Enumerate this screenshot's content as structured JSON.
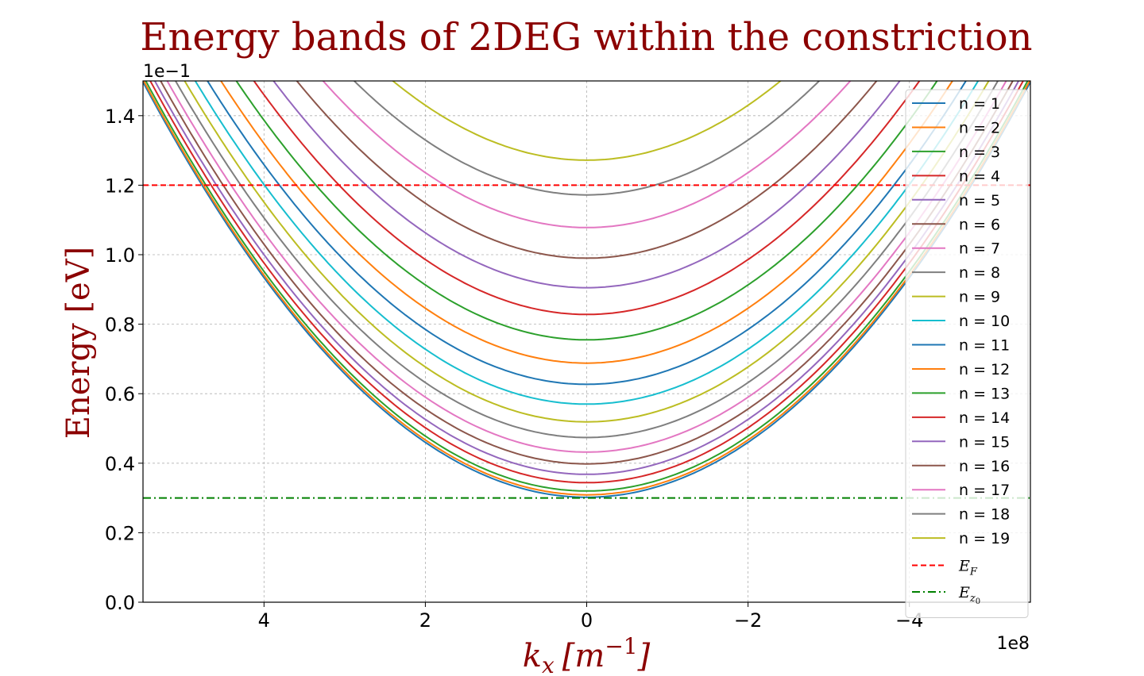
{
  "chart_data": {
    "type": "line",
    "title": "Energy bands of 2DEG within the constriction",
    "xlabel_base": "k",
    "xlabel_sub": "x",
    "xlabel_unit": "[m",
    "xlabel_unit_exp": "−1",
    "xlabel_unit_close": "]",
    "ylabel": "Energy [eV]",
    "x_multiplier": "1e8",
    "y_multiplier": "1e−1",
    "xlim": [
      5.5,
      -5.5
    ],
    "ylim": [
      0.0,
      1.5
    ],
    "x_inverted": true,
    "x_ticks": [
      4,
      2,
      0,
      -2,
      -4
    ],
    "x_tick_labels": [
      "4",
      "2",
      "0",
      "−2",
      "−4"
    ],
    "y_ticks": [
      0.0,
      0.2,
      0.4,
      0.6,
      0.8,
      1.0,
      1.2,
      1.4
    ],
    "y_tick_labels": [
      "0.0",
      "0.2",
      "0.4",
      "0.6",
      "0.8",
      "1.0",
      "1.2",
      "1.4"
    ],
    "grid": true,
    "legend_position": "right",
    "curve_curvature": 0.0395,
    "series": [
      {
        "name": "n = 1",
        "color": "#1f77b4",
        "min_energy": 0.302
      },
      {
        "name": "n = 2",
        "color": "#ff7f0e",
        "min_energy": 0.309
      },
      {
        "name": "n = 3",
        "color": "#2ca02c",
        "min_energy": 0.32
      },
      {
        "name": "n = 4",
        "color": "#d62728",
        "min_energy": 0.344
      },
      {
        "name": "n = 5",
        "color": "#9467bd",
        "min_energy": 0.368
      },
      {
        "name": "n = 6",
        "color": "#8c564b",
        "min_energy": 0.398
      },
      {
        "name": "n = 7",
        "color": "#e377c2",
        "min_energy": 0.432
      },
      {
        "name": "n = 8",
        "color": "#7f7f7f",
        "min_energy": 0.474
      },
      {
        "name": "n = 9",
        "color": "#bcbd22",
        "min_energy": 0.519
      },
      {
        "name": "n = 10",
        "color": "#17becf",
        "min_energy": 0.57
      },
      {
        "name": "n = 11",
        "color": "#1f77b4",
        "min_energy": 0.627
      },
      {
        "name": "n = 12",
        "color": "#ff7f0e",
        "min_energy": 0.688
      },
      {
        "name": "n = 13",
        "color": "#2ca02c",
        "min_energy": 0.755
      },
      {
        "name": "n = 14",
        "color": "#d62728",
        "min_energy": 0.828
      },
      {
        "name": "n = 15",
        "color": "#9467bd",
        "min_energy": 0.905
      },
      {
        "name": "n = 16",
        "color": "#8c564b",
        "min_energy": 0.99
      },
      {
        "name": "n = 17",
        "color": "#e377c2",
        "min_energy": 1.078
      },
      {
        "name": "n = 18",
        "color": "#7f7f7f",
        "min_energy": 1.172
      },
      {
        "name": "n = 19",
        "color": "#bcbd22",
        "min_energy": 1.272
      }
    ],
    "reference_lines": [
      {
        "label_base": "E",
        "label_sub": "F",
        "value": 1.2,
        "color": "#ff0000",
        "style": "dashed"
      },
      {
        "label_base": "E",
        "label_sub": "z",
        "label_subsub": "0",
        "value": 0.3,
        "color": "#008000",
        "style": "dashdot"
      }
    ]
  }
}
